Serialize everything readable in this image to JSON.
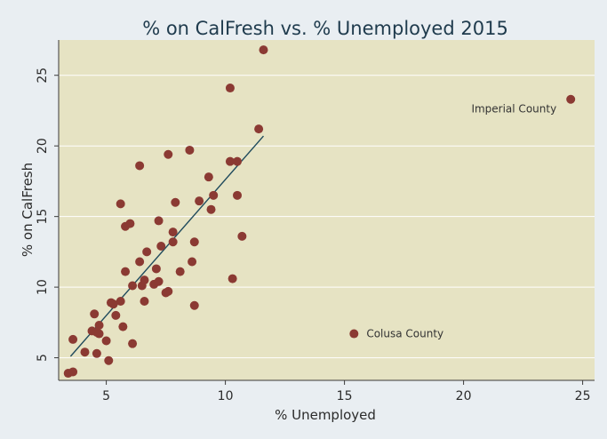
{
  "chart_data": {
    "type": "scatter",
    "title": "% on CalFresh vs. % Unemployed 2015",
    "xlabel": "% Unemployed",
    "ylabel": "% on CalFresh",
    "xlim": [
      3,
      25.5
    ],
    "ylim": [
      3.4,
      27.5
    ],
    "xticks": [
      5,
      10,
      15,
      20,
      25
    ],
    "yticks": [
      5,
      10,
      15,
      20,
      25
    ],
    "grid": "horizontal",
    "legend": "none",
    "colors": {
      "plot_background": "#e6e3c3",
      "page_background": "#e9eef2",
      "point": "#8b3a33",
      "fit_line": "#1f4a5c",
      "grid": "#ffffff"
    },
    "points": [
      {
        "x": 3.4,
        "y": 3.9
      },
      {
        "x": 3.6,
        "y": 4.0
      },
      {
        "x": 3.6,
        "y": 6.3
      },
      {
        "x": 4.1,
        "y": 5.4
      },
      {
        "x": 4.4,
        "y": 6.9
      },
      {
        "x": 4.5,
        "y": 8.1
      },
      {
        "x": 4.6,
        "y": 5.3
      },
      {
        "x": 4.6,
        "y": 6.8
      },
      {
        "x": 4.7,
        "y": 7.3
      },
      {
        "x": 4.7,
        "y": 6.7
      },
      {
        "x": 5.0,
        "y": 6.2
      },
      {
        "x": 5.1,
        "y": 4.8
      },
      {
        "x": 5.2,
        "y": 8.9
      },
      {
        "x": 5.3,
        "y": 8.8
      },
      {
        "x": 5.4,
        "y": 8.0
      },
      {
        "x": 5.6,
        "y": 9.0
      },
      {
        "x": 5.6,
        "y": 15.9
      },
      {
        "x": 5.7,
        "y": 7.2
      },
      {
        "x": 5.8,
        "y": 11.1
      },
      {
        "x": 5.8,
        "y": 14.3
      },
      {
        "x": 6.0,
        "y": 14.5
      },
      {
        "x": 6.1,
        "y": 10.1
      },
      {
        "x": 6.1,
        "y": 6.0
      },
      {
        "x": 6.4,
        "y": 11.8
      },
      {
        "x": 6.4,
        "y": 18.6
      },
      {
        "x": 6.5,
        "y": 10.1
      },
      {
        "x": 6.6,
        "y": 10.5
      },
      {
        "x": 6.6,
        "y": 9.0
      },
      {
        "x": 6.7,
        "y": 12.5
      },
      {
        "x": 7.0,
        "y": 10.2
      },
      {
        "x": 7.1,
        "y": 11.3
      },
      {
        "x": 7.2,
        "y": 10.4
      },
      {
        "x": 7.2,
        "y": 14.7
      },
      {
        "x": 7.3,
        "y": 12.9
      },
      {
        "x": 7.5,
        "y": 9.6
      },
      {
        "x": 7.6,
        "y": 9.7
      },
      {
        "x": 7.6,
        "y": 19.4
      },
      {
        "x": 7.8,
        "y": 13.2
      },
      {
        "x": 7.8,
        "y": 13.9
      },
      {
        "x": 7.9,
        "y": 16.0
      },
      {
        "x": 8.1,
        "y": 11.1
      },
      {
        "x": 8.5,
        "y": 19.7
      },
      {
        "x": 8.6,
        "y": 11.8
      },
      {
        "x": 8.7,
        "y": 13.2
      },
      {
        "x": 8.7,
        "y": 8.7
      },
      {
        "x": 8.9,
        "y": 16.1
      },
      {
        "x": 9.3,
        "y": 17.8
      },
      {
        "x": 9.4,
        "y": 15.5
      },
      {
        "x": 9.5,
        "y": 16.5
      },
      {
        "x": 10.2,
        "y": 24.1
      },
      {
        "x": 10.2,
        "y": 18.9
      },
      {
        "x": 10.3,
        "y": 10.6
      },
      {
        "x": 10.5,
        "y": 18.9
      },
      {
        "x": 10.5,
        "y": 16.5
      },
      {
        "x": 10.7,
        "y": 13.6
      },
      {
        "x": 11.4,
        "y": 21.2
      },
      {
        "x": 11.6,
        "y": 26.8
      },
      {
        "x": 15.4,
        "y": 6.7
      },
      {
        "x": 24.5,
        "y": 23.3
      }
    ],
    "fit_line": {
      "x": [
        3.5,
        11.6
      ],
      "y": [
        5.1,
        20.7
      ]
    },
    "annotations": [
      {
        "text": "Imperial County",
        "x": 24.5,
        "y": 23.3,
        "anchor": "left-of"
      },
      {
        "text": "Colusa County",
        "x": 15.4,
        "y": 6.7,
        "anchor": "right-of"
      }
    ]
  }
}
